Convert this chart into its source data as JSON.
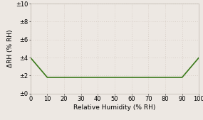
{
  "x_data": [
    0,
    10,
    20,
    80,
    90,
    100
  ],
  "y_data": [
    4.0,
    1.8,
    1.8,
    1.8,
    1.8,
    4.0
  ],
  "line_color": "#3a7a1a",
  "line_width": 1.2,
  "background_color": "#ede8e3",
  "xlabel": "Relative Humidity (% RH)",
  "ylabel": "ΔRH (% RH)",
  "xlim": [
    0,
    100
  ],
  "ylim": [
    0,
    10
  ],
  "xticks": [
    0,
    10,
    20,
    30,
    40,
    50,
    60,
    70,
    80,
    90,
    100
  ],
  "yticks": [
    0,
    2,
    4,
    6,
    8,
    10
  ],
  "ytick_labels": [
    "±0",
    "±2",
    "±4",
    "±6",
    "±8",
    "±10"
  ],
  "grid_color": "#c8bcb2",
  "label_fontsize": 6.5,
  "tick_fontsize": 6.0
}
